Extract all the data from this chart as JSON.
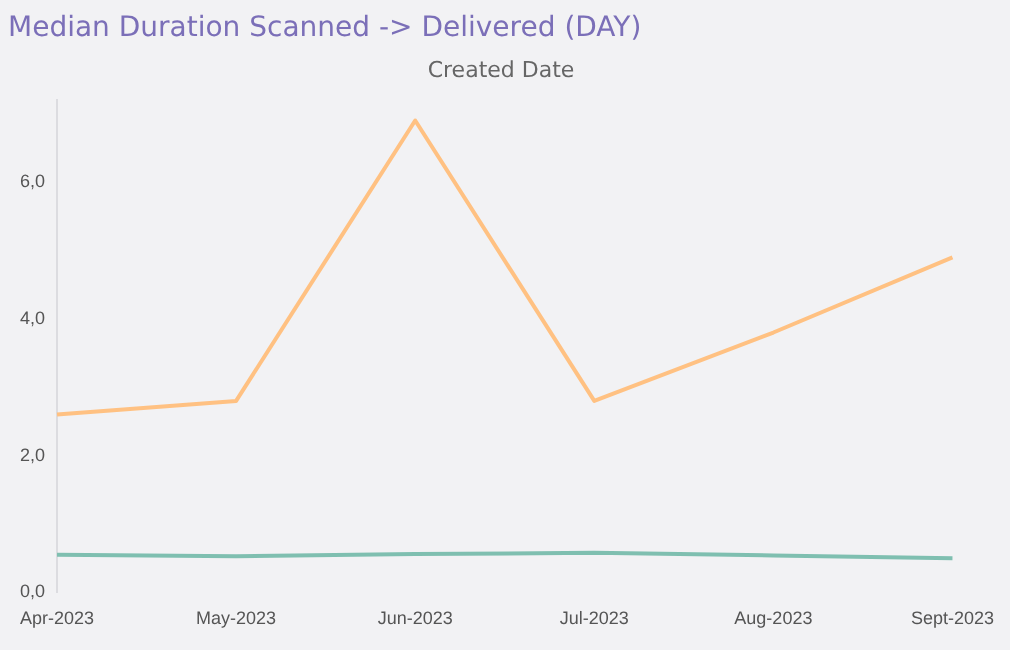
{
  "chart_data": {
    "type": "line",
    "title": "Median Duration Scanned -> Delivered (DAY)",
    "subtitle": "Created Date",
    "categories": [
      "Apr-2023",
      "May-2023",
      "Jun-2023",
      "Jul-2023",
      "Aug-2023",
      "Sept-2023"
    ],
    "series": [
      {
        "color": "#ffc182",
        "values": [
          2.6,
          2.8,
          6.9,
          2.8,
          3.8,
          4.9
        ]
      },
      {
        "color": "#7fbfb0",
        "values": [
          0.55,
          0.53,
          0.56,
          0.58,
          0.54,
          0.5
        ]
      }
    ],
    "ylim": [
      0,
      7.2
    ],
    "yticks": [
      {
        "value": 0,
        "label": "0,0"
      },
      {
        "value": 2,
        "label": "2,0"
      },
      {
        "value": 4,
        "label": "4,0"
      },
      {
        "value": 6,
        "label": "6,0"
      }
    ],
    "grid": false,
    "legend": false,
    "marker": "none",
    "line_style": "solid"
  }
}
